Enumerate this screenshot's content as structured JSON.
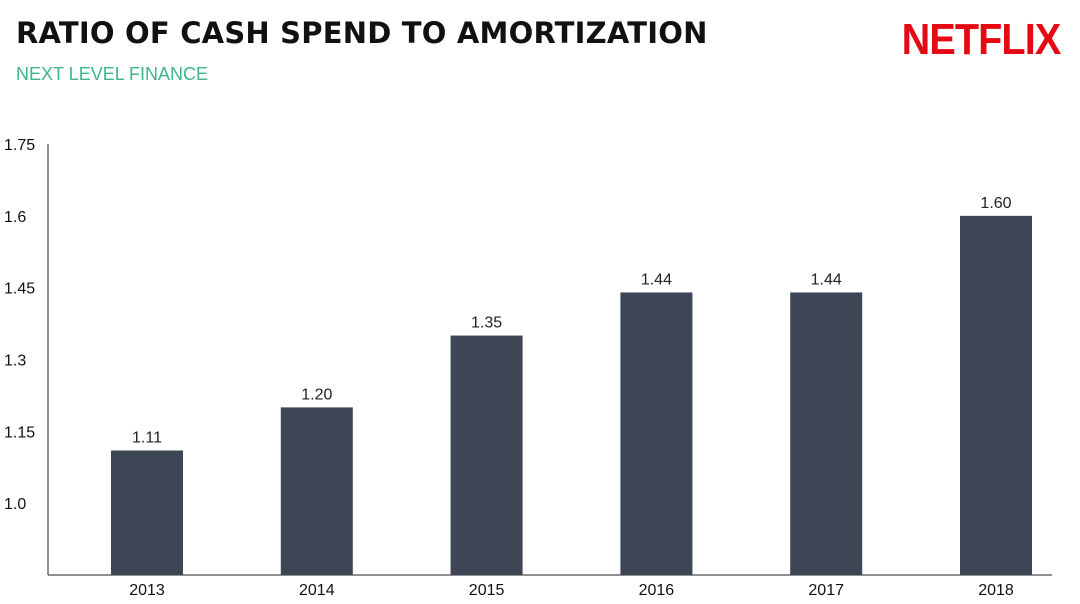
{
  "header": {
    "title": "RATIO OF CASH SPEND TO AMORTIZATION",
    "subtitle": "NEXT LEVEL FINANCE",
    "logo_text": "NETFLIX"
  },
  "colors": {
    "bar": "#3e4656",
    "subtitle": "#3fb58c",
    "logo": "#e50914",
    "axis": "#222222"
  },
  "chart_data": {
    "type": "bar",
    "title": "RATIO OF CASH SPEND TO AMORTIZATION",
    "subtitle": "NEXT LEVEL FINANCE",
    "categories": [
      "2013",
      "2014",
      "2015",
      "2016",
      "2017",
      "2018"
    ],
    "values": [
      1.11,
      1.2,
      1.35,
      1.44,
      1.44,
      1.6
    ],
    "value_labels": [
      "1.11",
      "1.20",
      "1.35",
      "1.44",
      "1.44",
      "1.60"
    ],
    "y_ticks": [
      1.0,
      1.15,
      1.3,
      1.45,
      1.6,
      1.75
    ],
    "y_tick_labels": [
      "1.0",
      "1.15",
      "1.3",
      "1.45",
      "1.6",
      "1.75"
    ],
    "ylim": [
      0.85,
      1.75
    ],
    "xlabel": "",
    "ylabel": "",
    "grid": false,
    "legend": "none"
  }
}
